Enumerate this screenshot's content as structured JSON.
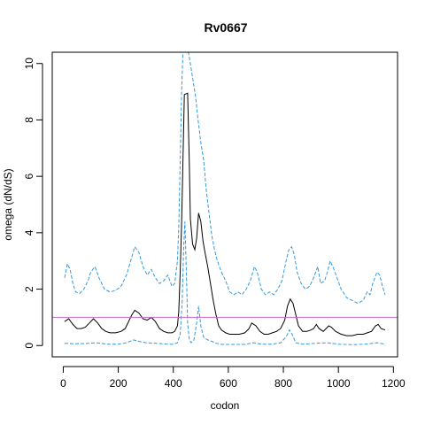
{
  "chart_data": {
    "type": "line",
    "title": "Rv0667",
    "xlabel": "codon",
    "ylabel": "omega (dN/dS)",
    "xlim": [
      -40,
      1215
    ],
    "ylim": [
      -0.4,
      10.4
    ],
    "x_ticks": [
      0,
      200,
      400,
      600,
      800,
      1000,
      1200
    ],
    "y_ticks": [
      0,
      2,
      4,
      6,
      8,
      10
    ],
    "reference_line": {
      "y": 1,
      "color": "#cc66cc"
    },
    "series": [
      {
        "role": "upper",
        "color": "#3399dd",
        "dash": true,
        "points": [
          [
            5,
            2.4
          ],
          [
            15,
            2.9
          ],
          [
            25,
            2.7
          ],
          [
            35,
            2.2
          ],
          [
            45,
            1.9
          ],
          [
            60,
            1.85
          ],
          [
            75,
            2.0
          ],
          [
            90,
            2.3
          ],
          [
            100,
            2.6
          ],
          [
            115,
            2.8
          ],
          [
            130,
            2.4
          ],
          [
            150,
            2.0
          ],
          [
            170,
            1.9
          ],
          [
            190,
            1.95
          ],
          [
            210,
            2.1
          ],
          [
            230,
            2.5
          ],
          [
            245,
            3.0
          ],
          [
            260,
            3.5
          ],
          [
            275,
            3.3
          ],
          [
            290,
            2.8
          ],
          [
            305,
            2.5
          ],
          [
            320,
            2.7
          ],
          [
            335,
            2.4
          ],
          [
            350,
            2.2
          ],
          [
            365,
            2.3
          ],
          [
            380,
            2.5
          ],
          [
            395,
            2.1
          ],
          [
            405,
            2.2
          ],
          [
            415,
            3.0
          ],
          [
            420,
            4.2
          ],
          [
            425,
            6.5
          ],
          [
            430,
            9.0
          ],
          [
            435,
            10.4
          ],
          [
            445,
            10.4
          ],
          [
            455,
            10.4
          ],
          [
            462,
            10.0
          ],
          [
            470,
            9.5
          ],
          [
            480,
            8.9
          ],
          [
            490,
            8.0
          ],
          [
            500,
            7.2
          ],
          [
            510,
            6.6
          ],
          [
            520,
            5.5
          ],
          [
            530,
            4.7
          ],
          [
            540,
            3.9
          ],
          [
            550,
            3.4
          ],
          [
            560,
            3.0
          ],
          [
            575,
            2.6
          ],
          [
            590,
            2.3
          ],
          [
            605,
            1.9
          ],
          [
            620,
            1.8
          ],
          [
            635,
            1.9
          ],
          [
            650,
            1.8
          ],
          [
            665,
            2.0
          ],
          [
            680,
            2.3
          ],
          [
            695,
            2.8
          ],
          [
            705,
            2.6
          ],
          [
            720,
            2.0
          ],
          [
            735,
            1.8
          ],
          [
            750,
            1.9
          ],
          [
            765,
            1.8
          ],
          [
            780,
            2.0
          ],
          [
            795,
            2.3
          ],
          [
            810,
            3.0
          ],
          [
            820,
            3.4
          ],
          [
            830,
            3.5
          ],
          [
            840,
            3.2
          ],
          [
            850,
            2.6
          ],
          [
            865,
            2.2
          ],
          [
            880,
            2.0
          ],
          [
            895,
            2.1
          ],
          [
            910,
            2.4
          ],
          [
            925,
            2.8
          ],
          [
            935,
            2.2
          ],
          [
            950,
            2.3
          ],
          [
            960,
            2.6
          ],
          [
            970,
            3.0
          ],
          [
            980,
            2.8
          ],
          [
            995,
            2.4
          ],
          [
            1010,
            2.0
          ],
          [
            1030,
            1.7
          ],
          [
            1050,
            1.6
          ],
          [
            1070,
            1.5
          ],
          [
            1090,
            1.6
          ],
          [
            1105,
            1.9
          ],
          [
            1115,
            1.8
          ],
          [
            1125,
            2.2
          ],
          [
            1140,
            2.6
          ],
          [
            1150,
            2.5
          ],
          [
            1160,
            2.1
          ],
          [
            1170,
            1.8
          ]
        ]
      },
      {
        "role": "estimate",
        "color": "#000000",
        "dash": false,
        "points": [
          [
            5,
            0.85
          ],
          [
            20,
            0.95
          ],
          [
            35,
            0.75
          ],
          [
            50,
            0.6
          ],
          [
            65,
            0.6
          ],
          [
            80,
            0.65
          ],
          [
            95,
            0.8
          ],
          [
            110,
            0.95
          ],
          [
            125,
            0.8
          ],
          [
            140,
            0.6
          ],
          [
            155,
            0.5
          ],
          [
            170,
            0.45
          ],
          [
            190,
            0.45
          ],
          [
            210,
            0.5
          ],
          [
            225,
            0.6
          ],
          [
            240,
            0.9
          ],
          [
            250,
            1.1
          ],
          [
            260,
            1.25
          ],
          [
            275,
            1.15
          ],
          [
            290,
            0.95
          ],
          [
            305,
            0.9
          ],
          [
            320,
            1.0
          ],
          [
            335,
            0.85
          ],
          [
            350,
            0.6
          ],
          [
            365,
            0.5
          ],
          [
            380,
            0.45
          ],
          [
            395,
            0.45
          ],
          [
            405,
            0.5
          ],
          [
            415,
            0.7
          ],
          [
            420,
            1.2
          ],
          [
            425,
            2.6
          ],
          [
            430,
            4.3
          ],
          [
            435,
            6.5
          ],
          [
            440,
            8.9
          ],
          [
            452,
            8.95
          ],
          [
            458,
            6.5
          ],
          [
            462,
            4.5
          ],
          [
            470,
            3.6
          ],
          [
            478,
            3.4
          ],
          [
            485,
            3.8
          ],
          [
            492,
            4.7
          ],
          [
            500,
            4.4
          ],
          [
            508,
            3.7
          ],
          [
            515,
            3.3
          ],
          [
            525,
            2.8
          ],
          [
            535,
            2.2
          ],
          [
            545,
            1.6
          ],
          [
            555,
            1.1
          ],
          [
            565,
            0.7
          ],
          [
            575,
            0.55
          ],
          [
            590,
            0.45
          ],
          [
            605,
            0.4
          ],
          [
            620,
            0.4
          ],
          [
            640,
            0.4
          ],
          [
            660,
            0.45
          ],
          [
            675,
            0.6
          ],
          [
            685,
            0.8
          ],
          [
            700,
            0.7
          ],
          [
            715,
            0.5
          ],
          [
            730,
            0.4
          ],
          [
            745,
            0.4
          ],
          [
            760,
            0.45
          ],
          [
            775,
            0.5
          ],
          [
            790,
            0.6
          ],
          [
            805,
            0.9
          ],
          [
            815,
            1.4
          ],
          [
            825,
            1.65
          ],
          [
            835,
            1.5
          ],
          [
            845,
            1.1
          ],
          [
            855,
            0.7
          ],
          [
            870,
            0.5
          ],
          [
            885,
            0.5
          ],
          [
            900,
            0.55
          ],
          [
            910,
            0.6
          ],
          [
            920,
            0.75
          ],
          [
            930,
            0.6
          ],
          [
            945,
            0.5
          ],
          [
            955,
            0.6
          ],
          [
            965,
            0.7
          ],
          [
            975,
            0.65
          ],
          [
            990,
            0.5
          ],
          [
            1010,
            0.4
          ],
          [
            1030,
            0.35
          ],
          [
            1050,
            0.35
          ],
          [
            1070,
            0.4
          ],
          [
            1090,
            0.4
          ],
          [
            1105,
            0.45
          ],
          [
            1120,
            0.5
          ],
          [
            1135,
            0.7
          ],
          [
            1145,
            0.75
          ],
          [
            1155,
            0.6
          ],
          [
            1170,
            0.55
          ]
        ]
      },
      {
        "role": "lower",
        "color": "#3399dd",
        "dash": true,
        "points": [
          [
            5,
            0.08
          ],
          [
            40,
            0.06
          ],
          [
            80,
            0.07
          ],
          [
            120,
            0.1
          ],
          [
            160,
            0.05
          ],
          [
            200,
            0.05
          ],
          [
            230,
            0.1
          ],
          [
            255,
            0.2
          ],
          [
            275,
            0.15
          ],
          [
            300,
            0.1
          ],
          [
            340,
            0.08
          ],
          [
            380,
            0.05
          ],
          [
            400,
            0.05
          ],
          [
            415,
            0.1
          ],
          [
            425,
            0.4
          ],
          [
            432,
            1.5
          ],
          [
            438,
            3.5
          ],
          [
            442,
            4.4
          ],
          [
            448,
            2.5
          ],
          [
            452,
            0.8
          ],
          [
            458,
            0.2
          ],
          [
            465,
            0.1
          ],
          [
            475,
            0.2
          ],
          [
            485,
            0.8
          ],
          [
            492,
            1.4
          ],
          [
            500,
            0.7
          ],
          [
            510,
            0.3
          ],
          [
            525,
            0.2
          ],
          [
            540,
            0.15
          ],
          [
            555,
            0.08
          ],
          [
            580,
            0.04
          ],
          [
            620,
            0.04
          ],
          [
            660,
            0.04
          ],
          [
            690,
            0.1
          ],
          [
            720,
            0.05
          ],
          [
            760,
            0.05
          ],
          [
            790,
            0.1
          ],
          [
            810,
            0.3
          ],
          [
            822,
            0.55
          ],
          [
            832,
            0.4
          ],
          [
            845,
            0.1
          ],
          [
            870,
            0.05
          ],
          [
            920,
            0.08
          ],
          [
            960,
            0.1
          ],
          [
            1000,
            0.05
          ],
          [
            1050,
            0.03
          ],
          [
            1100,
            0.05
          ],
          [
            1140,
            0.1
          ],
          [
            1170,
            0.05
          ]
        ]
      }
    ]
  }
}
